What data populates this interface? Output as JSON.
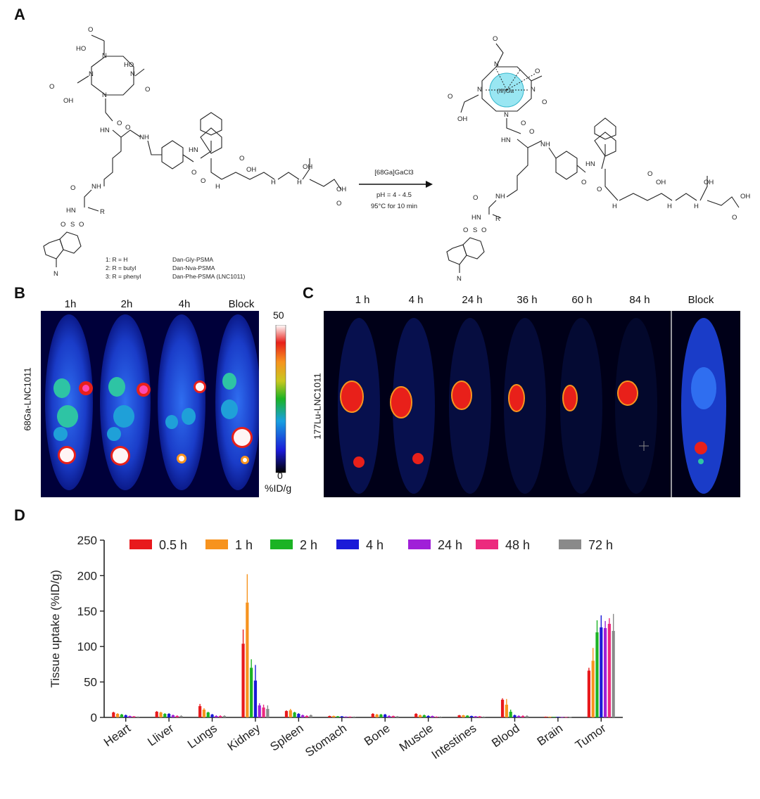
{
  "panels": {
    "A": "A",
    "B": "B",
    "C": "C",
    "D": "D"
  },
  "panel_a": {
    "variants": [
      {
        "code": "1: R = H",
        "name": "Dan-Gly-PSMA"
      },
      {
        "code": "2: R = butyl",
        "name": "Dan-Nva-PSMA"
      },
      {
        "code": "3: R = phenyl",
        "name": "Dan-Phe-PSMA (LNC1011)"
      }
    ],
    "reagent_line1": "[68Ga]GaCl3",
    "reagent_line2": "pH = 4 - 4.5",
    "reagent_line3": "95°C for 10 min",
    "atoms": {
      "n": "N",
      "hn": "HN",
      "nh": "NH",
      "h": "H",
      "o": "O",
      "oh": "OH",
      "ho": "HO",
      "r": "R",
      "s": "S",
      "ga": "(III)Ga",
      "nme": "N"
    }
  },
  "panel_b": {
    "timepoints": [
      "1h",
      "2h",
      "4h",
      "Block"
    ],
    "ylabel": "68Ga-LNC1011",
    "scale_max": "50",
    "scale_min": "0",
    "scale_unit": "%ID/g",
    "colors": {
      "bg": "#000033",
      "body": "#1a3cc8",
      "tumor": "#e8201a",
      "hot": "#ff4ab0"
    }
  },
  "panel_c": {
    "timepoints": [
      "1 h",
      "4 h",
      "24 h",
      "36 h",
      "60 h",
      "84 h",
      "Block"
    ],
    "ylabel": "177Lu-LNC1011"
  },
  "chart_data": {
    "type": "bar",
    "ylabel": "Tissue uptake (%ID/g)",
    "ylim": [
      0,
      250
    ],
    "yticks": [
      "0",
      "50",
      "100",
      "150",
      "200",
      "250"
    ],
    "categories": [
      "Heart",
      "Lliver",
      "Lungs",
      "Kidney",
      "Spleen",
      "Stomach",
      "Bone",
      "Muscle",
      "Intestines",
      "Blood",
      "Brain",
      "Tumor"
    ],
    "series": [
      {
        "name": "0.5 h",
        "color": "#e8191c",
        "values": [
          7,
          8,
          16,
          104,
          9,
          2,
          5,
          5,
          3,
          25,
          1,
          66
        ],
        "errors": [
          1,
          1,
          3,
          20,
          1,
          0.5,
          1,
          1,
          0.5,
          2,
          0.2,
          4
        ]
      },
      {
        "name": "1 h",
        "color": "#f7931e",
        "values": [
          5,
          7,
          11,
          162,
          10,
          2,
          4,
          3,
          3,
          18,
          1,
          80
        ],
        "errors": [
          1,
          1,
          2,
          40,
          2,
          0.5,
          1,
          1,
          0.5,
          8,
          0.2,
          18
        ]
      },
      {
        "name": "2 h",
        "color": "#1bb324",
        "values": [
          4,
          5,
          7,
          70,
          7,
          1.5,
          4,
          3,
          2.5,
          8,
          0.8,
          120
        ],
        "errors": [
          1,
          1,
          1,
          12,
          1,
          0.5,
          1,
          1,
          0.5,
          3,
          0.2,
          17
        ]
      },
      {
        "name": "4 h",
        "color": "#1a1ad8",
        "values": [
          3,
          5,
          4,
          52,
          5,
          1.5,
          4,
          2,
          2,
          3,
          0.8,
          127
        ],
        "errors": [
          1,
          1,
          1,
          22,
          1,
          0.5,
          1,
          1,
          0.5,
          1,
          0.2,
          17
        ]
      },
      {
        "name": "24 h",
        "color": "#a020d8",
        "values": [
          2,
          3,
          2,
          17,
          3,
          1,
          2,
          2,
          1.5,
          2,
          0.5,
          126
        ],
        "errors": [
          0.5,
          1,
          1,
          3,
          1,
          0.5,
          1,
          0.5,
          0.5,
          1,
          0.2,
          10
        ]
      },
      {
        "name": "48 h",
        "color": "#ec2a7e",
        "values": [
          1.5,
          2,
          2,
          14,
          2,
          1,
          2,
          1,
          1.5,
          2,
          0.5,
          132
        ],
        "errors": [
          0.5,
          1,
          1,
          4,
          1,
          0.5,
          0.5,
          0.5,
          0.5,
          1,
          0.2,
          8
        ]
      },
      {
        "name": "72 h",
        "color": "#8a8a8a",
        "values": [
          1,
          2,
          2,
          12,
          3,
          1,
          1.5,
          1,
          1,
          2,
          0.5,
          122
        ],
        "errors": [
          0.5,
          1,
          1,
          5,
          1,
          0.5,
          0.5,
          0.5,
          0.5,
          1,
          0.2,
          24
        ]
      }
    ]
  }
}
